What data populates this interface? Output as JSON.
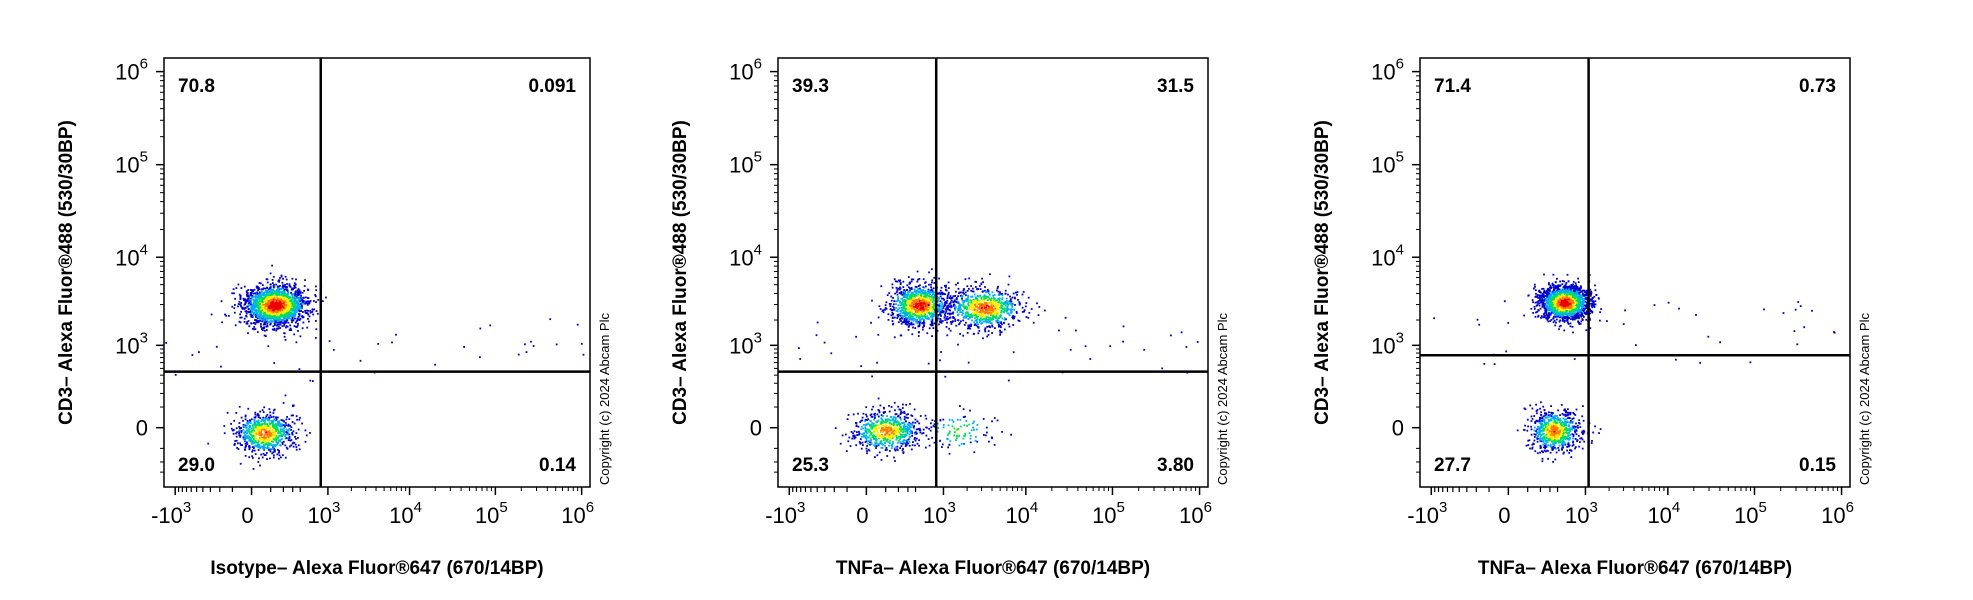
{
  "chart_data": [
    {
      "type": "scatter",
      "subtype": "flow-cytometry-density-dot-plot",
      "xlabel": "Isotype– Alexa Fluor®647 (670/14BP)",
      "ylabel": "CD3– Alexa Fluor®488 (530/30BP)",
      "scale": "biexponential",
      "x_ticks": [
        {
          "base": "-10",
          "exp": "3",
          "value": -1000
        },
        {
          "base": "0",
          "exp": "",
          "value": 0
        },
        {
          "base": "10",
          "exp": "3",
          "value": 1000
        },
        {
          "base": "10",
          "exp": "4",
          "value": 10000
        },
        {
          "base": "10",
          "exp": "5",
          "value": 100000
        },
        {
          "base": "10",
          "exp": "6",
          "value": 1000000
        }
      ],
      "y_ticks": [
        {
          "base": "0",
          "exp": "",
          "value": 0
        },
        {
          "base": "10",
          "exp": "3",
          "value": 1000
        },
        {
          "base": "10",
          "exp": "4",
          "value": 10000
        },
        {
          "base": "10",
          "exp": "5",
          "value": 100000
        },
        {
          "base": "10",
          "exp": "6",
          "value": 1000000
        }
      ],
      "gate": {
        "x": 800,
        "y": 450
      },
      "quadrants": {
        "UL": "70.8",
        "UR": "0.091",
        "LL": "29.0",
        "LR": "0.14"
      },
      "populations": [
        {
          "x": 130,
          "y": 3000,
          "x_spread": 0.18,
          "y_spread": 0.11,
          "fraction": 0.7
        },
        {
          "x": 60,
          "y": -20,
          "x_spread": 0.17,
          "y_spread": 0.11,
          "fraction": 0.29
        }
      ],
      "copyright": "Copyright (c) 2024 Abcam Plc"
    },
    {
      "type": "scatter",
      "subtype": "flow-cytometry-density-dot-plot",
      "xlabel": "TNFa– Alexa Fluor®647 (670/14BP)",
      "ylabel": "CD3– Alexa Fluor®488 (530/30BP)",
      "scale": "biexponential",
      "x_ticks": [
        {
          "base": "-10",
          "exp": "3",
          "value": -1000
        },
        {
          "base": "0",
          "exp": "",
          "value": 0
        },
        {
          "base": "10",
          "exp": "3",
          "value": 1000
        },
        {
          "base": "10",
          "exp": "4",
          "value": 10000
        },
        {
          "base": "10",
          "exp": "5",
          "value": 100000
        },
        {
          "base": "10",
          "exp": "6",
          "value": 1000000
        }
      ],
      "y_ticks": [
        {
          "base": "0",
          "exp": "",
          "value": 0
        },
        {
          "base": "10",
          "exp": "3",
          "value": 1000
        },
        {
          "base": "10",
          "exp": "4",
          "value": 10000
        },
        {
          "base": "10",
          "exp": "5",
          "value": 100000
        },
        {
          "base": "10",
          "exp": "6",
          "value": 1000000
        }
      ],
      "gate": {
        "x": 800,
        "y": 450
      },
      "quadrants": {
        "UL": "39.3",
        "UR": "31.5",
        "LL": "25.3",
        "LR": "3.80"
      },
      "populations": [
        {
          "x": 450,
          "y": 3000,
          "x_spread": 0.17,
          "y_spread": 0.11,
          "fraction": 0.4
        },
        {
          "x": 3200,
          "y": 2800,
          "x_spread": 0.22,
          "y_spread": 0.11,
          "fraction": 0.31
        },
        {
          "x": 100,
          "y": -10,
          "x_spread": 0.2,
          "y_spread": 0.11,
          "fraction": 0.25
        },
        {
          "x": 1500,
          "y": -10,
          "x_spread": 0.2,
          "y_spread": 0.1,
          "fraction": 0.04
        }
      ],
      "copyright": "Copyright (c) 2024 Abcam Plc"
    },
    {
      "type": "scatter",
      "subtype": "flow-cytometry-density-dot-plot",
      "xlabel": "TNFa– Alexa Fluor®647 (670/14BP)",
      "ylabel": "CD3– Alexa Fluor®488 (530/30BP)",
      "scale": "biexponential",
      "x_ticks": [
        {
          "base": "-10",
          "exp": "3",
          "value": -1000
        },
        {
          "base": "0",
          "exp": "",
          "value": 0
        },
        {
          "base": "10",
          "exp": "3",
          "value": 1000
        },
        {
          "base": "10",
          "exp": "4",
          "value": 10000
        },
        {
          "base": "10",
          "exp": "5",
          "value": 100000
        },
        {
          "base": "10",
          "exp": "6",
          "value": 1000000
        }
      ],
      "y_ticks": [
        {
          "base": "0",
          "exp": "",
          "value": 0
        },
        {
          "base": "10",
          "exp": "3",
          "value": 1000
        },
        {
          "base": "10",
          "exp": "4",
          "value": 10000
        },
        {
          "base": "10",
          "exp": "5",
          "value": 100000
        },
        {
          "base": "10",
          "exp": "6",
          "value": 1000000
        }
      ],
      "gate": {
        "x": 1100,
        "y": 750
      },
      "quadrants": {
        "UL": "71.4",
        "UR": "0.73",
        "LL": "27.7",
        "LR": "0.15"
      },
      "populations": [
        {
          "x": 500,
          "y": 3200,
          "x_spread": 0.14,
          "y_spread": 0.09,
          "fraction": 0.71
        },
        {
          "x": 350,
          "y": -10,
          "x_spread": 0.14,
          "y_spread": 0.11,
          "fraction": 0.28
        }
      ],
      "copyright": "Copyright (c) 2024 Abcam Plc"
    }
  ],
  "colors": {
    "density_scale": [
      "#0000cc",
      "#00aaff",
      "#00dd66",
      "#ffee00",
      "#ff7700",
      "#ee0000"
    ],
    "axes": "#000000"
  }
}
